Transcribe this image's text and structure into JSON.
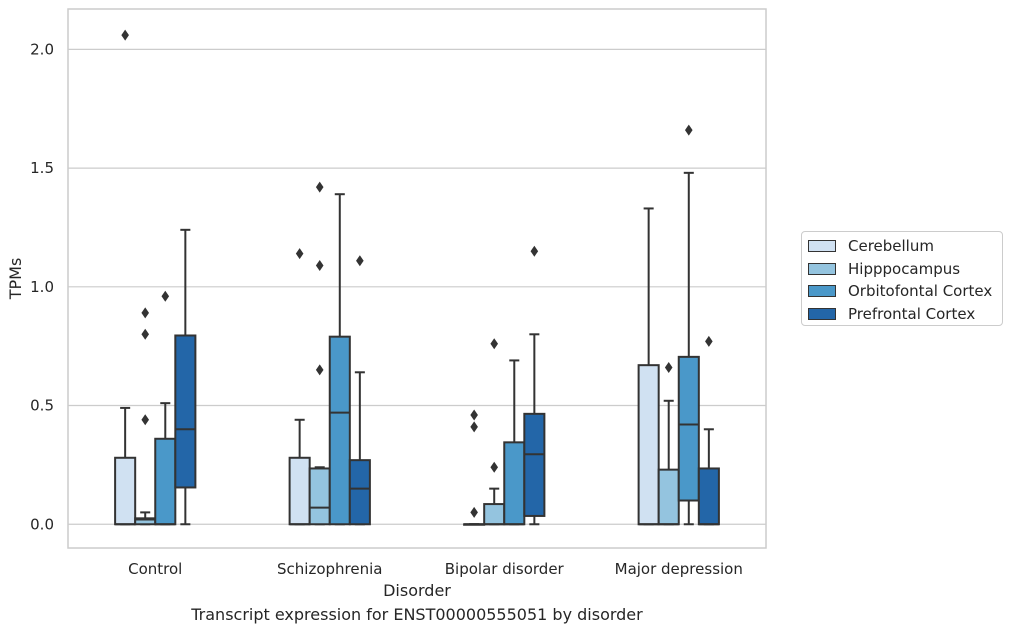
{
  "caption": "Transcript expression for ENST00000555051 by disorder",
  "chart_data": {
    "type": "box",
    "xlabel": "Disorder",
    "ylabel": "TPMs",
    "ylim": [
      -0.1,
      2.17
    ],
    "yticks": [
      "0.0",
      "0.5",
      "1.0",
      "1.5",
      "2.0"
    ],
    "ytick_values": [
      0,
      0.5,
      1.0,
      1.5,
      2.0
    ],
    "grid": "horizontal",
    "legend_position": "right",
    "categories": [
      "Control",
      "Schizophrenia",
      "Bipolar disorder",
      "Major depression"
    ],
    "series": [
      {
        "name": "Cerebellum",
        "color": "#d0e1f2",
        "boxes": [
          {
            "q1": 0,
            "median": 0,
            "q3": 0.28,
            "whisker_low": 0,
            "whisker_high": 0.49,
            "outliers": [
              2.06
            ]
          },
          {
            "q1": 0,
            "median": 0,
            "q3": 0.28,
            "whisker_low": 0,
            "whisker_high": 0.44,
            "outliers": [
              1.14
            ]
          },
          {
            "q1": 0,
            "median": 0,
            "q3": 0,
            "whisker_low": 0,
            "whisker_high": 0,
            "outliers": [
              0.05,
              0.41,
              0.46
            ]
          },
          {
            "q1": 0,
            "median": 0,
            "q3": 0.67,
            "whisker_low": 0,
            "whisker_high": 1.33,
            "outliers": []
          }
        ]
      },
      {
        "name": "Hipppocampus",
        "color": "#94c4df",
        "boxes": [
          {
            "q1": 0,
            "median": 0.02,
            "q3": 0.025,
            "whisker_low": 0,
            "whisker_high": 0.05,
            "outliers": [
              0.44,
              0.8,
              0.89
            ]
          },
          {
            "q1": 0,
            "median": 0.07,
            "q3": 0.235,
            "whisker_low": 0,
            "whisker_high": 0.24,
            "outliers": [
              0.65,
              1.09,
              1.42
            ]
          },
          {
            "q1": 0,
            "median": 0,
            "q3": 0.085,
            "whisker_low": 0,
            "whisker_high": 0.15,
            "outliers": [
              0.24,
              0.76
            ]
          },
          {
            "q1": 0,
            "median": 0,
            "q3": 0.23,
            "whisker_low": 0,
            "whisker_high": 0.52,
            "outliers": [
              0.66
            ]
          }
        ]
      },
      {
        "name": "Orbitofontal Cortex",
        "color": "#4a98c9",
        "boxes": [
          {
            "q1": 0,
            "median": 0,
            "q3": 0.36,
            "whisker_low": 0,
            "whisker_high": 0.51,
            "outliers": [
              0.96
            ]
          },
          {
            "q1": 0,
            "median": 0.47,
            "q3": 0.79,
            "whisker_low": 0,
            "whisker_high": 1.39,
            "outliers": []
          },
          {
            "q1": 0,
            "median": 0,
            "q3": 0.345,
            "whisker_low": 0,
            "whisker_high": 0.69,
            "outliers": []
          },
          {
            "q1": 0.1,
            "median": 0.42,
            "q3": 0.705,
            "whisker_low": 0,
            "whisker_high": 1.48,
            "outliers": [
              1.66
            ]
          }
        ]
      },
      {
        "name": "Prefrontal Cortex",
        "color": "#2366a8",
        "boxes": [
          {
            "q1": 0.155,
            "median": 0.4,
            "q3": 0.795,
            "whisker_low": 0,
            "whisker_high": 1.24,
            "outliers": []
          },
          {
            "q1": 0,
            "median": 0.15,
            "q3": 0.27,
            "whisker_low": 0,
            "whisker_high": 0.64,
            "outliers": [
              1.11
            ]
          },
          {
            "q1": 0.035,
            "median": 0.295,
            "q3": 0.465,
            "whisker_low": 0,
            "whisker_high": 0.8,
            "outliers": [
              1.15
            ]
          },
          {
            "q1": 0,
            "median": 0,
            "q3": 0.235,
            "whisker_low": 0,
            "whisker_high": 0.4,
            "outliers": [
              0.77
            ]
          }
        ]
      }
    ]
  }
}
